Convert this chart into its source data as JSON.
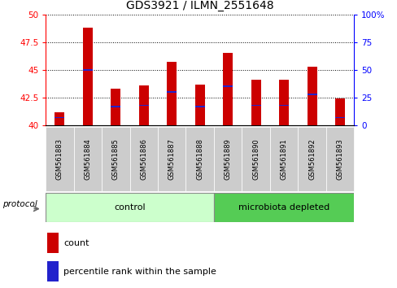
{
  "title": "GDS3921 / ILMN_2551648",
  "samples": [
    "GSM561883",
    "GSM561884",
    "GSM561885",
    "GSM561886",
    "GSM561887",
    "GSM561888",
    "GSM561889",
    "GSM561890",
    "GSM561891",
    "GSM561892",
    "GSM561893"
  ],
  "counts": [
    41.2,
    48.8,
    43.3,
    43.6,
    45.7,
    43.7,
    46.5,
    44.1,
    44.1,
    45.3,
    42.4
  ],
  "percentile_ranks": [
    7,
    50,
    17,
    18,
    30,
    17,
    35,
    18,
    18,
    28,
    7
  ],
  "ylim_left": [
    40,
    50
  ],
  "ylim_right": [
    0,
    100
  ],
  "yticks_left": [
    40,
    42.5,
    45,
    47.5,
    50
  ],
  "yticks_right": [
    0,
    25,
    50,
    75,
    100
  ],
  "bar_color": "#cc0000",
  "percentile_color": "#2222cc",
  "control_samples": 6,
  "microbiota_samples": 5,
  "control_label": "control",
  "microbiota_label": "microbiota depleted",
  "control_color": "#ccffcc",
  "microbiota_color": "#55cc55",
  "xtick_bg": "#cccccc",
  "protocol_label": "protocol",
  "legend_count": "count",
  "legend_percentile": "percentile rank within the sample",
  "title_fontsize": 10,
  "tick_fontsize": 7.5,
  "label_fontsize": 8,
  "bar_width": 0.35
}
